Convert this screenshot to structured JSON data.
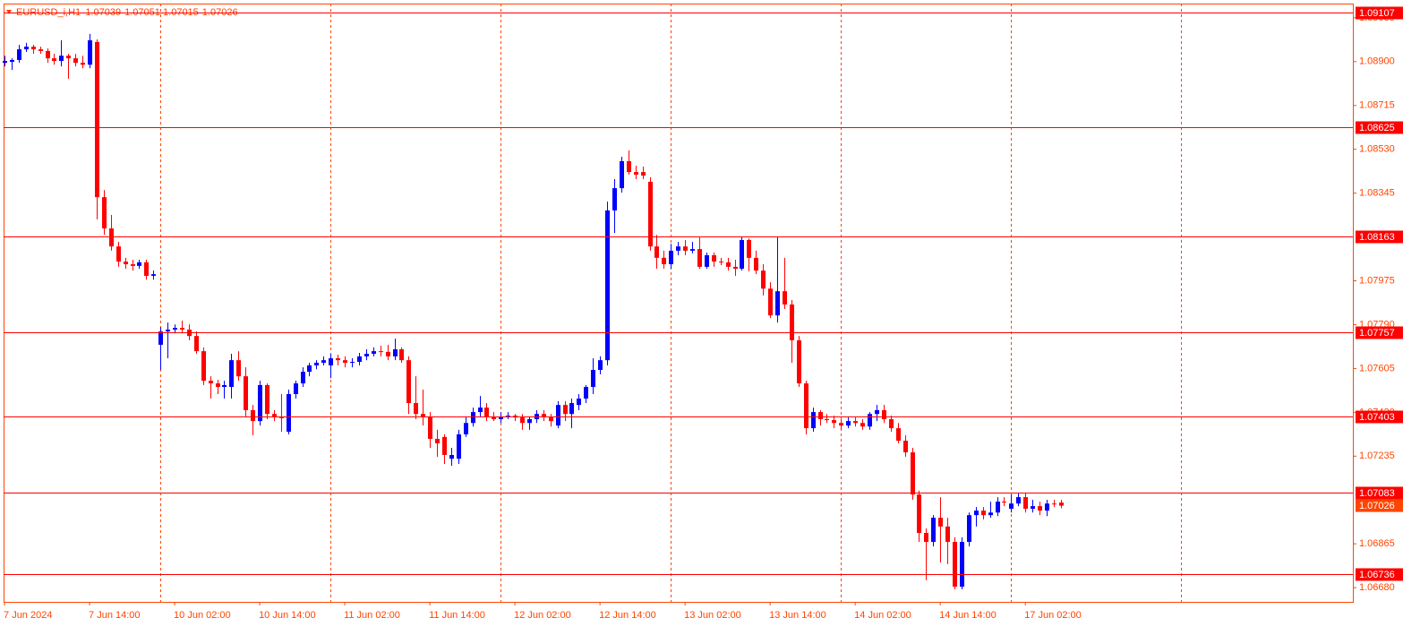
{
  "chart_data": {
    "type": "candlestick",
    "title": "EURUSD_i,H1",
    "bull_color": "#0000ff",
    "bear_color": "#ff0000",
    "hline_color": "#ff0000",
    "grid_color": "#ff4500",
    "axis_color": "#ff4500",
    "price_label_color": "#ff4500",
    "xlim": [
      -0.13,
      190.2
    ],
    "xticks": [
      {
        "value": 0,
        "label": "7 Jun 2024"
      },
      {
        "value": 12,
        "label": "7 Jun 14:00"
      },
      {
        "value": 24,
        "label": "10 Jun 02:00"
      },
      {
        "value": 36,
        "label": "10 Jun 14:00"
      },
      {
        "value": 48,
        "label": "11 Jun 02:00"
      },
      {
        "value": 60,
        "label": "11 Jun 14:00"
      },
      {
        "value": 72,
        "label": "12 Jun 02:00"
      },
      {
        "value": 84,
        "label": "12 Jun 14:00"
      },
      {
        "value": 96,
        "label": "13 Jun 02:00"
      },
      {
        "value": 108,
        "label": "13 Jun 14:00"
      },
      {
        "value": 120,
        "label": "14 Jun 02:00"
      },
      {
        "value": 132,
        "label": "14 Jun 14:00"
      },
      {
        "value": 144,
        "label": "17 Jun 02:00"
      }
    ],
    "xgrid": [
      22,
      46,
      70,
      94,
      118,
      142,
      166
    ],
    "ylim": [
      1.0662,
      1.09145
    ],
    "yticks": [
      1.09085,
      {
        "value": 1.089,
        "label": "1.08900"
      },
      1.08715,
      {
        "value": 1.0853,
        "label": "1.08530"
      },
      1.08345,
      1.07975,
      {
        "value": 1.0779,
        "label": "1.07790"
      },
      1.07605,
      {
        "value": 1.0742,
        "label": "1.07420"
      },
      1.07235,
      1.06865,
      {
        "value": 1.0668,
        "label": "1.06680"
      }
    ],
    "hlines": [
      1.09107,
      1.08625,
      1.08163,
      1.07757,
      1.07403,
      1.07083,
      1.06736
    ],
    "candles": [
      [
        1.08895,
        1.08925,
        1.0888,
        1.08903
      ],
      [
        1.08899,
        1.08914,
        1.08865,
        1.08907
      ],
      [
        1.08907,
        1.08971,
        1.08895,
        1.08952
      ],
      [
        1.08952,
        1.08979,
        1.08941,
        1.08963
      ],
      [
        1.08963,
        1.08971,
        1.08933,
        1.08952
      ],
      [
        1.08952,
        1.08963,
        1.08933,
        1.08945
      ],
      [
        1.08945,
        1.08956,
        1.08895,
        1.08914
      ],
      [
        1.08914,
        1.08933,
        1.08887,
        1.08903
      ],
      [
        1.08903,
        1.0899,
        1.0888,
        1.08925
      ],
      [
        1.08925,
        1.08933,
        1.08828,
        1.08914
      ],
      [
        1.08914,
        1.08933,
        1.0888,
        1.08895
      ],
      [
        1.08895,
        1.08925,
        1.08872,
        1.08887
      ],
      [
        1.08887,
        1.09017,
        1.08872,
        1.0899
      ],
      [
        1.08983,
        1.08994,
        1.08234,
        1.08328
      ],
      [
        1.08328,
        1.08358,
        1.08169,
        1.08196
      ],
      [
        1.08196,
        1.08253,
        1.08102,
        1.0812
      ],
      [
        1.0812,
        1.08139,
        1.08034,
        1.08056
      ],
      [
        1.08056,
        1.08072,
        1.08026,
        1.08045
      ],
      [
        1.08045,
        1.08064,
        1.08018,
        1.08038
      ],
      [
        1.08038,
        1.08064,
        1.08026,
        1.08053
      ],
      [
        1.08053,
        1.08064,
        1.0798,
        1.07996
      ],
      [
        1.07996,
        1.08018,
        1.0798,
        1.08003
      ],
      [
        1.07705,
        1.0778,
        1.07599,
        1.07761
      ],
      [
        1.07761,
        1.07799,
        1.07648,
        1.07769
      ],
      [
        1.07769,
        1.07791,
        1.07753,
        1.07776
      ],
      [
        1.07776,
        1.07807,
        1.07753,
        1.07769
      ],
      [
        1.07769,
        1.07791,
        1.07724,
        1.07742
      ],
      [
        1.07742,
        1.07761,
        1.07667,
        1.07678
      ],
      [
        1.07678,
        1.07694,
        1.07535,
        1.07553
      ],
      [
        1.07553,
        1.07572,
        1.07478,
        1.07542
      ],
      [
        1.07542,
        1.07557,
        1.07497,
        1.07527
      ],
      [
        1.07527,
        1.07553,
        1.07478,
        1.07535
      ],
      [
        1.07527,
        1.07667,
        1.07478,
        1.0764
      ],
      [
        1.0764,
        1.07678,
        1.07553,
        1.07572
      ],
      [
        1.07572,
        1.0761,
        1.07402,
        1.07429
      ],
      [
        1.07429,
        1.07451,
        1.07323,
        1.07383
      ],
      [
        1.07383,
        1.07553,
        1.07364,
        1.07535
      ],
      [
        1.07535,
        1.07542,
        1.07391,
        1.07413
      ],
      [
        1.07413,
        1.07429,
        1.07383,
        1.07402
      ],
      [
        1.07402,
        1.07497,
        1.07338,
        1.07395
      ],
      [
        1.07338,
        1.07516,
        1.07327,
        1.07497
      ],
      [
        1.07497,
        1.07553,
        1.07478,
        1.07542
      ],
      [
        1.07542,
        1.0761,
        1.07527,
        1.07591
      ],
      [
        1.07591,
        1.07629,
        1.07572,
        1.07618
      ],
      [
        1.07618,
        1.0764,
        1.07602,
        1.07629
      ],
      [
        1.07629,
        1.07656,
        1.07618,
        1.0764
      ],
      [
        1.07618,
        1.07667,
        1.07564,
        1.07648
      ],
      [
        1.07648,
        1.07663,
        1.07618,
        1.0764
      ],
      [
        1.0764,
        1.07656,
        1.0761,
        1.07629
      ],
      [
        1.07629,
        1.07648,
        1.0761,
        1.07633
      ],
      [
        1.07633,
        1.07671,
        1.07618,
        1.07656
      ],
      [
        1.07656,
        1.07686,
        1.0764,
        1.07667
      ],
      [
        1.07667,
        1.07694,
        1.07656,
        1.07678
      ],
      [
        1.07678,
        1.07701,
        1.07656,
        1.07675
      ],
      [
        1.07675,
        1.07705,
        1.0764,
        1.07656
      ],
      [
        1.07656,
        1.07731,
        1.0764,
        1.07686
      ],
      [
        1.07686,
        1.07694,
        1.07629,
        1.0764
      ],
      [
        1.0764,
        1.07656,
        1.07413,
        1.07459
      ],
      [
        1.07459,
        1.07572,
        1.07391,
        1.07413
      ],
      [
        1.07413,
        1.07516,
        1.07364,
        1.07402
      ],
      [
        1.07402,
        1.07421,
        1.0727,
        1.07308
      ],
      [
        1.07308,
        1.07346,
        1.07232,
        1.07289
      ],
      [
        1.07316,
        1.07327,
        1.07202,
        1.0724
      ],
      [
        1.07224,
        1.0727,
        1.07194,
        1.0724
      ],
      [
        1.07224,
        1.07346,
        1.07202,
        1.07327
      ],
      [
        1.07327,
        1.07402,
        1.07316,
        1.07375
      ],
      [
        1.07375,
        1.0744,
        1.0736,
        1.07421
      ],
      [
        1.07421,
        1.07489,
        1.07402,
        1.0744
      ],
      [
        1.0744,
        1.07459,
        1.07383,
        1.07402
      ],
      [
        1.07402,
        1.07421,
        1.07383,
        1.07391
      ],
      [
        1.07391,
        1.07421,
        1.07375,
        1.07402
      ],
      [
        1.07402,
        1.07421,
        1.07391,
        1.07406
      ],
      [
        1.07406,
        1.07413,
        1.07383,
        1.07398
      ],
      [
        1.07398,
        1.07413,
        1.07346,
        1.07375
      ],
      [
        1.07375,
        1.07402,
        1.07346,
        1.07391
      ],
      [
        1.07391,
        1.07429,
        1.07375,
        1.07413
      ],
      [
        1.07413,
        1.07429,
        1.07383,
        1.07402
      ],
      [
        1.07402,
        1.07413,
        1.0736,
        1.07383
      ],
      [
        1.07364,
        1.07467,
        1.07353,
        1.07451
      ],
      [
        1.07451,
        1.07467,
        1.07383,
        1.07413
      ],
      [
        1.07413,
        1.07478,
        1.07353,
        1.07459
      ],
      [
        1.07451,
        1.07497,
        1.07429,
        1.07478
      ],
      [
        1.07478,
        1.07535,
        1.07459,
        1.07527
      ],
      [
        1.07527,
        1.07648,
        1.07497,
        1.07599
      ],
      [
        1.07599,
        1.07656,
        1.0758,
        1.0764
      ],
      [
        1.0764,
        1.08309,
        1.07618,
        1.08272
      ],
      [
        1.08272,
        1.08404,
        1.08177,
        1.08366
      ],
      [
        1.08366,
        1.08498,
        1.08347,
        1.0848
      ],
      [
        1.0848,
        1.08525,
        1.08423,
        1.08434
      ],
      [
        1.08434,
        1.08461,
        1.08404,
        1.08423
      ],
      [
        1.08434,
        1.08457,
        1.08404,
        1.08419
      ],
      [
        1.08393,
        1.08412,
        1.08102,
        1.0812
      ],
      [
        1.0812,
        1.08169,
        1.08026,
        1.08072
      ],
      [
        1.08072,
        1.08102,
        1.08026,
        1.08045
      ],
      [
        1.08045,
        1.08131,
        1.08026,
        1.08102
      ],
      [
        1.08102,
        1.08139,
        1.08083,
        1.0812
      ],
      [
        1.0812,
        1.08147,
        1.08083,
        1.08102
      ],
      [
        1.08102,
        1.08139,
        1.08091,
        1.08109
      ],
      [
        1.08109,
        1.08158,
        1.08026,
        1.08034
      ],
      [
        1.08034,
        1.08094,
        1.08026,
        1.08083
      ],
      [
        1.08083,
        1.08094,
        1.08034,
        1.08056
      ],
      [
        1.08056,
        1.08072,
        1.08041,
        1.08053
      ],
      [
        1.08053,
        1.08072,
        1.08018,
        1.08034
      ],
      [
        1.08034,
        1.08064,
        1.07996,
        1.08026
      ],
      [
        1.08026,
        1.08162,
        1.08018,
        1.08147
      ],
      [
        1.08147,
        1.08154,
        1.08015,
        1.08072
      ],
      [
        1.08072,
        1.08102,
        1.08003,
        1.08018
      ],
      [
        1.08018,
        1.08045,
        1.07913,
        1.07942
      ],
      [
        1.07942,
        1.07969,
        1.07818,
        1.07829
      ],
      [
        1.07829,
        1.08158,
        1.07799,
        1.07931
      ],
      [
        1.07931,
        1.08072,
        1.07856,
        1.07875
      ],
      [
        1.07875,
        1.07894,
        1.07629,
        1.07724
      ],
      [
        1.07724,
        1.07742,
        1.07527,
        1.07542
      ],
      [
        1.07542,
        1.07553,
        1.07327,
        1.07353
      ],
      [
        1.07353,
        1.0744,
        1.07338,
        1.07421
      ],
      [
        1.07421,
        1.07429,
        1.07364,
        1.07391
      ],
      [
        1.07391,
        1.07413,
        1.07375,
        1.07387
      ],
      [
        1.07387,
        1.07406,
        1.07353,
        1.07375
      ],
      [
        1.07375,
        1.07391,
        1.07346,
        1.07364
      ],
      [
        1.07364,
        1.07398,
        1.07353,
        1.07383
      ],
      [
        1.07383,
        1.07398,
        1.0736,
        1.07375
      ],
      [
        1.07375,
        1.07391,
        1.07346,
        1.0736
      ],
      [
        1.0736,
        1.07421,
        1.07346,
        1.07413
      ],
      [
        1.07413,
        1.07451,
        1.07383,
        1.07429
      ],
      [
        1.07429,
        1.07451,
        1.07375,
        1.07391
      ],
      [
        1.07391,
        1.07406,
        1.07338,
        1.07353
      ],
      [
        1.07353,
        1.07375,
        1.07289,
        1.073
      ],
      [
        1.073,
        1.07323,
        1.07232,
        1.07251
      ],
      [
        1.07251,
        1.0727,
        1.07051,
        1.07073
      ],
      [
        1.07073,
        1.07089,
        1.06873,
        1.06911
      ],
      [
        1.06911,
        1.0693,
        1.06711,
        1.06873
      ],
      [
        1.06873,
        1.06986,
        1.06854,
        1.06975
      ],
      [
        1.06975,
        1.07062,
        1.06786,
        1.06938
      ],
      [
        1.06938,
        1.06975,
        1.06779,
        1.06873
      ],
      [
        1.06873,
        1.06892,
        1.06673,
        1.06684
      ],
      [
        1.06684,
        1.06892,
        1.06673,
        1.06873
      ],
      [
        1.06873,
        1.06997,
        1.06854,
        1.06986
      ],
      [
        1.06986,
        1.0702,
        1.06938,
        1.07005
      ],
      [
        1.07005,
        1.0702,
        1.06968,
        1.06986
      ],
      [
        1.06986,
        1.07043,
        1.06975,
        1.06997
      ],
      [
        1.06997,
        1.07062,
        1.06982,
        1.07043
      ],
      [
        1.07043,
        1.07062,
        1.07024,
        1.07039
      ],
      [
        1.07013,
        1.07073,
        1.06997,
        1.07035
      ],
      [
        1.07035,
        1.07081,
        1.07024,
        1.07062
      ],
      [
        1.07062,
        1.07081,
        1.06997,
        1.07013
      ],
      [
        1.07013,
        1.07051,
        1.06997,
        1.07024
      ],
      [
        1.07024,
        1.07043,
        1.06986,
        1.07005
      ],
      [
        1.07005,
        1.07051,
        1.06982,
        1.07035
      ],
      [
        1.07035,
        1.07051,
        1.0702,
        1.07032
      ],
      [
        1.07039,
        1.07051,
        1.07015,
        1.07026
      ]
    ]
  }
}
